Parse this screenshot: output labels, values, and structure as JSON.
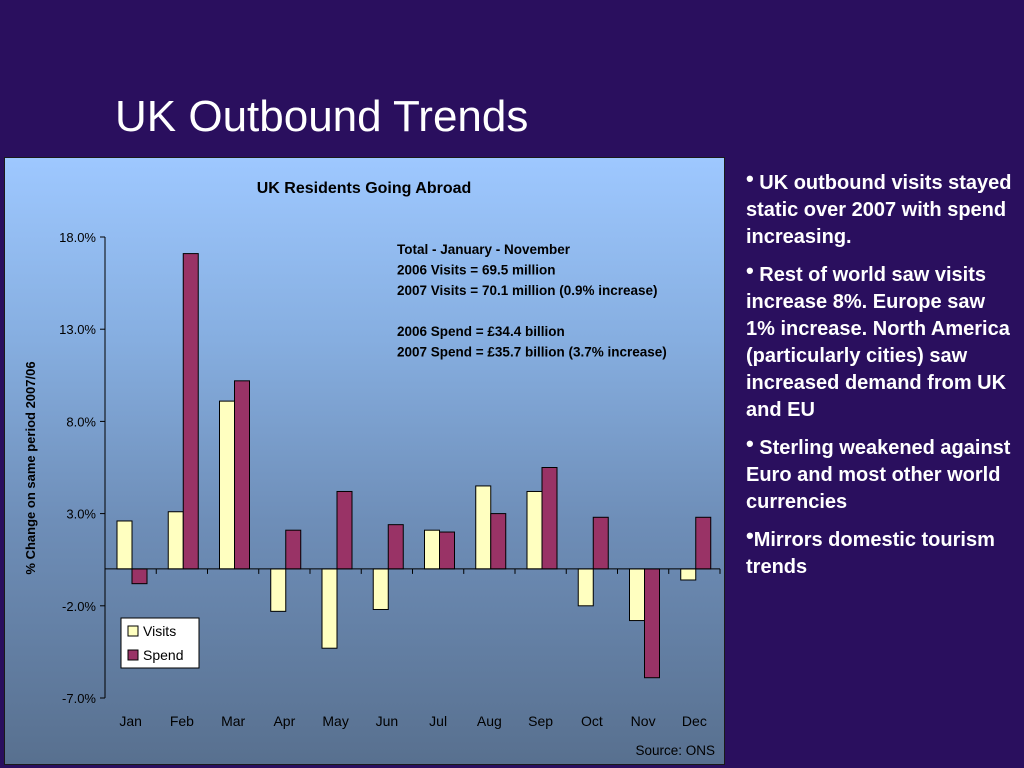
{
  "slide": {
    "title": "UK Outbound Trends"
  },
  "bullets": [
    " UK outbound visits stayed static over 2007 with spend increasing.",
    " Rest of world saw visits increase 8%. Europe saw 1% increase.  North America (particularly cities) saw increased demand from UK and EU",
    " Sterling weakened against Euro and most other world currencies",
    "Mirrors domestic tourism trends"
  ],
  "chart_data": {
    "type": "bar",
    "title": "UK Residents Going Abroad",
    "ylabel": "% Change on same period 2007/06",
    "xlabel": "",
    "categories": [
      "Jan",
      "Feb",
      "Mar",
      "Apr",
      "May",
      "Jun",
      "Jul",
      "Aug",
      "Sep",
      "Oct",
      "Nov",
      "Dec"
    ],
    "series": [
      {
        "name": "Visits",
        "color": "#ffffc0",
        "values": [
          2.6,
          3.1,
          9.1,
          -2.3,
          -4.3,
          -2.2,
          2.1,
          4.5,
          4.2,
          -2.0,
          -2.8,
          -0.6
        ]
      },
      {
        "name": "Spend",
        "color": "#993366",
        "values": [
          -0.8,
          17.1,
          10.2,
          2.1,
          4.2,
          2.4,
          2.0,
          3.0,
          5.5,
          2.8,
          -5.9,
          2.8
        ]
      }
    ],
    "ylim": [
      -7,
      18
    ],
    "yticks": [
      18,
      13,
      8,
      3,
      -2,
      -7
    ],
    "ytick_labels": [
      "18.0%",
      "13.0%",
      "8.0%",
      "3.0%",
      "-2.0%",
      "-7.0%"
    ],
    "legend": "bottom-left",
    "annotation": [
      "Total - January - November",
      "2006 Visits = 69.5 million",
      "2007 Visits = 70.1 million (0.9% increase)",
      "",
      "2006 Spend = £34.4 billion",
      "2007 Spend = £35.7 billion (3.7% increase)"
    ],
    "source": "Source: ONS"
  }
}
